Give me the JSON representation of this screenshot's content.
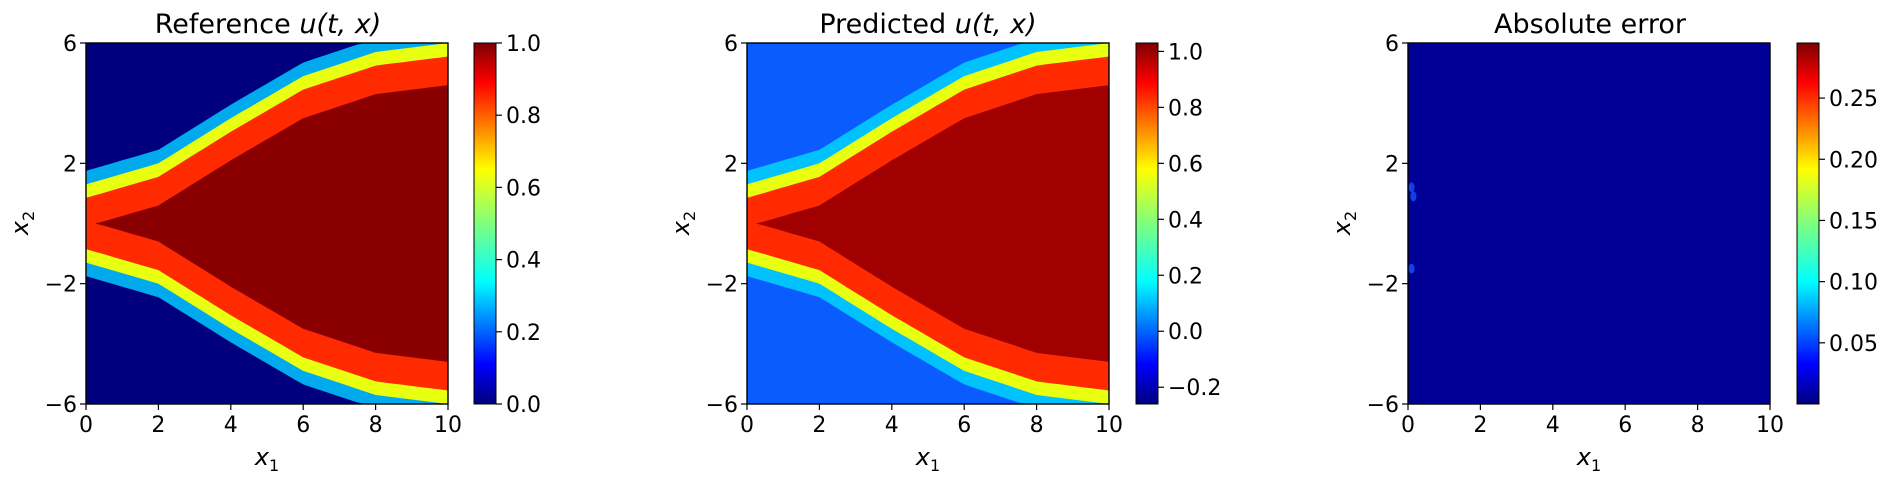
{
  "figure": {
    "panels": [
      {
        "title_prefix": "Reference",
        "title_math": "u(t, x)",
        "xlabel_base": "x",
        "xlabel_sub": "1",
        "ylabel_base": "x",
        "ylabel_sub": "2",
        "xticks": [
          "0",
          "2",
          "4",
          "6",
          "8",
          "10"
        ],
        "yticks": [
          "6",
          "2",
          "−2",
          "−6"
        ],
        "cbar_ticks": [
          "1.0",
          "0.8",
          "0.6",
          "0.4",
          "0.2",
          "0.0"
        ]
      },
      {
        "title_prefix": "Predicted",
        "title_math": "u(t, x)",
        "xlabel_base": "x",
        "xlabel_sub": "1",
        "ylabel_base": "x",
        "ylabel_sub": "2",
        "xticks": [
          "0",
          "2",
          "4",
          "6",
          "8",
          "10"
        ],
        "yticks": [
          "6",
          "2",
          "−2",
          "−6"
        ],
        "cbar_ticks": [
          "1.0",
          "0.8",
          "0.6",
          "0.4",
          "0.2",
          "0.0",
          "−0.2"
        ]
      },
      {
        "title_prefix": "Absolute error",
        "title_math": "",
        "xlabel_base": "x",
        "xlabel_sub": "1",
        "ylabel_base": "x",
        "ylabel_sub": "2",
        "xticks": [
          "0",
          "2",
          "4",
          "6",
          "8",
          "10"
        ],
        "yticks": [
          "6",
          "2",
          "−2",
          "−6"
        ],
        "cbar_ticks": [
          "0.25",
          "0.20",
          "0.15",
          "0.10",
          "0.05"
        ]
      }
    ]
  },
  "chart_data": [
    {
      "type": "heatmap",
      "colormap": "jet",
      "xlim": [
        0,
        10
      ],
      "ylim": [
        -6,
        6
      ],
      "xticks": [
        0,
        2,
        4,
        6,
        8,
        10
      ],
      "yticks": [
        6,
        2,
        -2,
        -6
      ],
      "clim": [
        0,
        1
      ],
      "cbar_ticks": [
        1.0,
        0.8,
        0.6,
        0.4,
        0.2,
        0.0
      ],
      "front_center_x2": {
        "x1": [
          0,
          2,
          4,
          6,
          8,
          10
        ],
        "values": [
          1.0,
          1.7,
          3.2,
          4.6,
          5.4,
          5.7
        ]
      },
      "inside_value": 1.0,
      "outside_value": 0.0
    },
    {
      "type": "heatmap",
      "colormap": "jet",
      "xlim": [
        0,
        10
      ],
      "ylim": [
        -6,
        6
      ],
      "xticks": [
        0,
        2,
        4,
        6,
        8,
        10
      ],
      "yticks": [
        6,
        2,
        -2,
        -6
      ],
      "clim": [
        -0.26,
        1.03
      ],
      "cbar_ticks": [
        1.0,
        0.8,
        0.6,
        0.4,
        0.2,
        0.0,
        -0.2
      ],
      "front_center_x2": {
        "x1": [
          0,
          2,
          4,
          6,
          8,
          10
        ],
        "values": [
          1.0,
          1.7,
          3.2,
          4.6,
          5.4,
          5.7
        ]
      },
      "inside_value": 1.0,
      "outside_value": 0.0
    },
    {
      "type": "heatmap",
      "colormap": "jet",
      "xlim": [
        0,
        10
      ],
      "ylim": [
        -6,
        6
      ],
      "xticks": [
        0,
        2,
        4,
        6,
        8,
        10
      ],
      "yticks": [
        6,
        2,
        -2,
        -6
      ],
      "clim": [
        0.0,
        0.295
      ],
      "cbar_ticks": [
        0.25,
        0.2,
        0.15,
        0.1,
        0.05
      ],
      "background_value": 0.0,
      "hotspots": [
        {
          "x1": 0.1,
          "x2": 1.2,
          "value": 0.06
        },
        {
          "x1": 0.15,
          "x2": 0.9,
          "value": 0.05
        },
        {
          "x1": 0.1,
          "x2": -1.5,
          "value": 0.03
        }
      ]
    }
  ]
}
